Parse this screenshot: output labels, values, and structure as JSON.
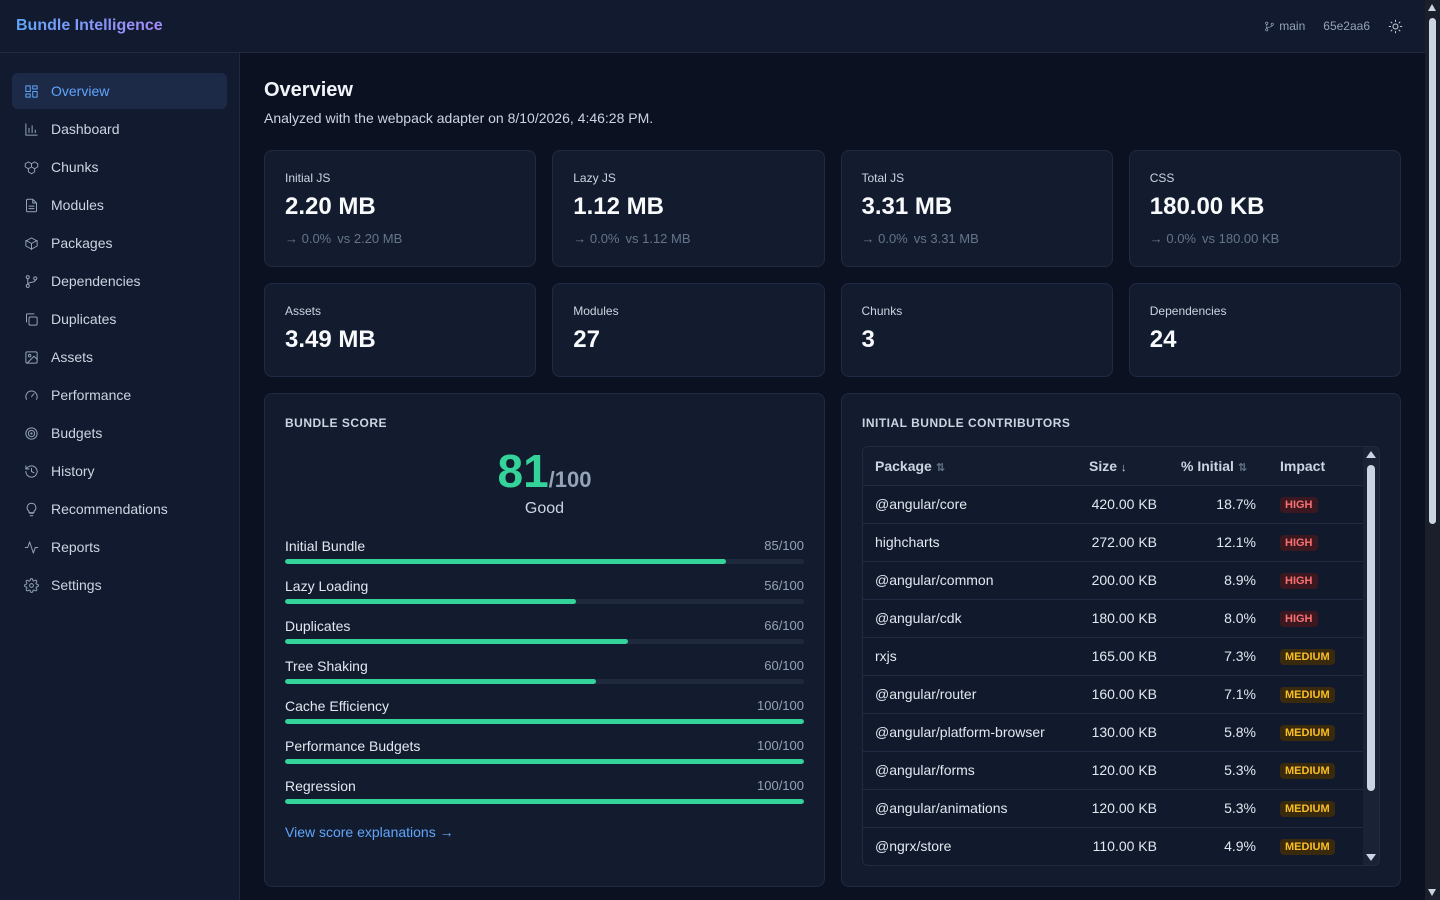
{
  "app": {
    "title": "Bundle Intelligence",
    "branch": "main",
    "commit": "65e2aa6",
    "theme_icon": "sun-icon"
  },
  "sidebar": {
    "items": [
      {
        "label": "Overview",
        "icon": "grid-icon",
        "active": true
      },
      {
        "label": "Dashboard",
        "icon": "bar-chart-icon"
      },
      {
        "label": "Chunks",
        "icon": "boxes-icon"
      },
      {
        "label": "Modules",
        "icon": "file-icon"
      },
      {
        "label": "Packages",
        "icon": "package-icon"
      },
      {
        "label": "Dependencies",
        "icon": "git-branch-icon"
      },
      {
        "label": "Duplicates",
        "icon": "copy-icon"
      },
      {
        "label": "Assets",
        "icon": "image-icon"
      },
      {
        "label": "Performance",
        "icon": "gauge-icon"
      },
      {
        "label": "Budgets",
        "icon": "target-icon"
      },
      {
        "label": "History",
        "icon": "history-icon"
      },
      {
        "label": "Recommendations",
        "icon": "lightbulb-icon"
      },
      {
        "label": "Reports",
        "icon": "activity-icon"
      },
      {
        "label": "Settings",
        "icon": "gear-icon"
      }
    ]
  },
  "page": {
    "title": "Overview",
    "subtitle": "Analyzed with the webpack adapter on 8/10/2026, 4:46:28 PM."
  },
  "stats_top": [
    {
      "label": "Initial JS",
      "value": "2.20 MB",
      "delta": "→ 0.0%",
      "vs": "vs 2.20 MB"
    },
    {
      "label": "Lazy JS",
      "value": "1.12 MB",
      "delta": "→ 0.0%",
      "vs": "vs 1.12 MB"
    },
    {
      "label": "Total JS",
      "value": "3.31 MB",
      "delta": "→ 0.0%",
      "vs": "vs 3.31 MB"
    },
    {
      "label": "CSS",
      "value": "180.00 KB",
      "delta": "→ 0.0%",
      "vs": "vs 180.00 KB"
    }
  ],
  "stats_bottom": [
    {
      "label": "Assets",
      "value": "3.49 MB"
    },
    {
      "label": "Modules",
      "value": "27"
    },
    {
      "label": "Chunks",
      "value": "3"
    },
    {
      "label": "Dependencies",
      "value": "24"
    }
  ],
  "score": {
    "title": "BUNDLE SCORE",
    "value": "81",
    "of": "/100",
    "grade": "Good",
    "color": "#34d399",
    "metrics": [
      {
        "label": "Initial Bundle",
        "value": "85/100",
        "fraction": 0.85
      },
      {
        "label": "Lazy Loading",
        "value": "56/100",
        "fraction": 0.56
      },
      {
        "label": "Duplicates",
        "value": "66/100",
        "fraction": 0.66
      },
      {
        "label": "Tree Shaking",
        "value": "60/100",
        "fraction": 0.6
      },
      {
        "label": "Cache Efficiency",
        "value": "100/100",
        "fraction": 1.0
      },
      {
        "label": "Performance Budgets",
        "value": "100/100",
        "fraction": 1.0
      },
      {
        "label": "Regression",
        "value": "100/100",
        "fraction": 1.0
      }
    ],
    "link": "View score explanations →"
  },
  "contributors": {
    "title": "INITIAL BUNDLE CONTRIBUTORS",
    "columns": {
      "package": "Package",
      "size": "Size",
      "initial": "% Initial",
      "impact": "Impact"
    },
    "rows": [
      {
        "package": "@angular/core",
        "size": "420.00 KB",
        "pct": "18.7%",
        "impact": "HIGH"
      },
      {
        "package": "highcharts",
        "size": "272.00 KB",
        "pct": "12.1%",
        "impact": "HIGH"
      },
      {
        "package": "@angular/common",
        "size": "200.00 KB",
        "pct": "8.9%",
        "impact": "HIGH"
      },
      {
        "package": "@angular/cdk",
        "size": "180.00 KB",
        "pct": "8.0%",
        "impact": "HIGH"
      },
      {
        "package": "rxjs",
        "size": "165.00 KB",
        "pct": "7.3%",
        "impact": "MEDIUM"
      },
      {
        "package": "@angular/router",
        "size": "160.00 KB",
        "pct": "7.1%",
        "impact": "MEDIUM"
      },
      {
        "package": "@angular/platform-browser",
        "size": "130.00 KB",
        "pct": "5.8%",
        "impact": "MEDIUM"
      },
      {
        "package": "@angular/forms",
        "size": "120.00 KB",
        "pct": "5.3%",
        "impact": "MEDIUM"
      },
      {
        "package": "@angular/animations",
        "size": "120.00 KB",
        "pct": "5.3%",
        "impact": "MEDIUM"
      },
      {
        "package": "@ngrx/store",
        "size": "110.00 KB",
        "pct": "4.9%",
        "impact": "MEDIUM"
      }
    ]
  }
}
